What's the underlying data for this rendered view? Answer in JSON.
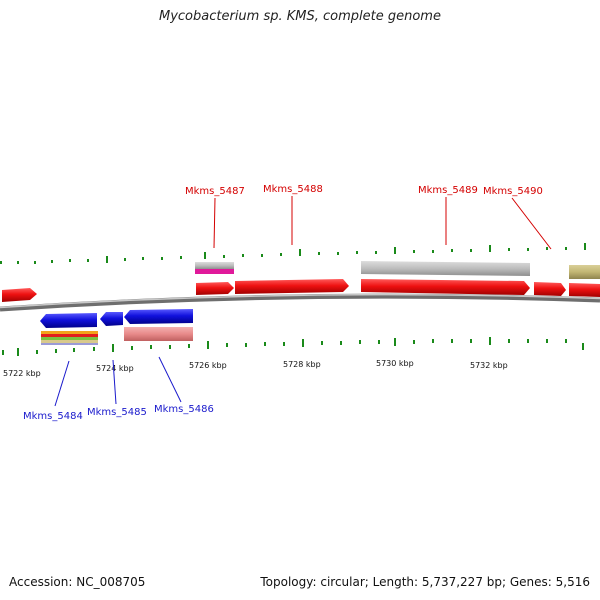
{
  "title": "Mycobacterium sp. KMS, complete genome",
  "footer": {
    "accession": "Accession: NC_008705",
    "summary": "Topology: circular; Length: 5,737,227 bp; Genes: 5,516"
  },
  "ticks": [
    "5722 kbp",
    "5724 kbp",
    "5726 kbp",
    "5728 kbp",
    "5730 kbp",
    "5732 kbp"
  ],
  "genes_forward": [
    "Mkms_5487",
    "Mkms_5488",
    "Mkms_5489",
    "Mkms_5490"
  ],
  "genes_reverse": [
    "Mkms_5484",
    "Mkms_5485",
    "Mkms_5486"
  ],
  "colors": {
    "forward": "#ee1111",
    "reverse": "#1111dd",
    "backbone": "#8a8a8a",
    "tick": "#1a8a1a",
    "label_forward": "#d40000",
    "label_reverse": "#1a1acc"
  }
}
